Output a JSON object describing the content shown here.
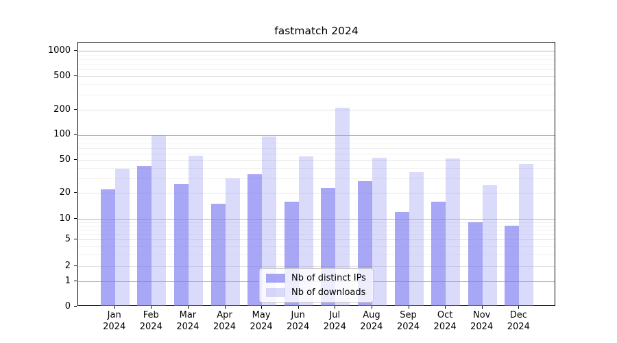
{
  "title": "fastmatch 2024",
  "chart_data": {
    "type": "bar",
    "title": "fastmatch 2024",
    "categories": [
      "Jan 2024",
      "Feb 2024",
      "Mar 2024",
      "Apr 2024",
      "May 2024",
      "Jun 2024",
      "Jul 2024",
      "Aug 2024",
      "Sep 2024",
      "Oct 2024",
      "Nov 2024",
      "Dec 2024"
    ],
    "month_labels": [
      "Jan",
      "Feb",
      "Mar",
      "Apr",
      "May",
      "Jun",
      "Jul",
      "Aug",
      "Sep",
      "Oct",
      "Nov",
      "Dec"
    ],
    "year_label": "2024",
    "series": [
      {
        "name": "Nb of distinct IPs",
        "color": "rgba(120,120,240,0.65)",
        "values": [
          22,
          42,
          26,
          15,
          34,
          16,
          23,
          28,
          12,
          16,
          9,
          8
        ]
      },
      {
        "name": "Nb of downloads",
        "color": "rgba(150,150,242,0.35)",
        "values": [
          39,
          100,
          56,
          30,
          96,
          55,
          210,
          53,
          36,
          52,
          25,
          45
        ]
      }
    ],
    "y_axis": {
      "scale": "symlog",
      "ticks": [
        0,
        1,
        2,
        5,
        10,
        20,
        50,
        100,
        200,
        500,
        1000
      ],
      "minor_ticks": [
        3,
        4,
        6,
        7,
        8,
        9,
        30,
        40,
        60,
        70,
        80,
        90,
        300,
        400,
        600,
        700,
        800,
        900
      ],
      "range": [
        0,
        1200
      ]
    },
    "legend": {
      "position": "lower center",
      "entries": [
        "Nb of distinct IPs",
        "Nb of downloads"
      ]
    },
    "grid": "on"
  }
}
